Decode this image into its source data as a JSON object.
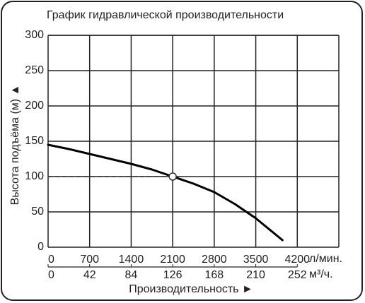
{
  "chart_data": {
    "type": "line",
    "title": "График гидравлической производительности",
    "y_label": "Высота подъёма (м) ▲",
    "x_label": "Производительность ►",
    "x_unit": "л/мин.",
    "x2_unit": "м³/ч.",
    "series": [
      {
        "color": "#000000",
        "x": [
          0,
          350,
          700,
          1050,
          1400,
          1750,
          2100,
          2450,
          2800,
          3150,
          3500,
          3950
        ],
        "values": [
          145,
          139,
          132,
          125,
          118,
          110,
          100,
          90,
          78,
          61,
          41,
          10
        ]
      }
    ],
    "marker": {
      "x": 2100,
      "y": 100
    },
    "xlim": [
      0,
      4900
    ],
    "xticks": [
      0,
      700,
      1400,
      2100,
      2800,
      3500,
      4200
    ],
    "x2lim": [
      0,
      294
    ],
    "x2ticks": [
      0,
      42,
      84,
      126,
      168,
      210,
      252
    ],
    "ylim": [
      0,
      300
    ],
    "yticks": [
      0,
      50,
      100,
      150,
      200,
      250,
      300
    ],
    "grid": true
  }
}
